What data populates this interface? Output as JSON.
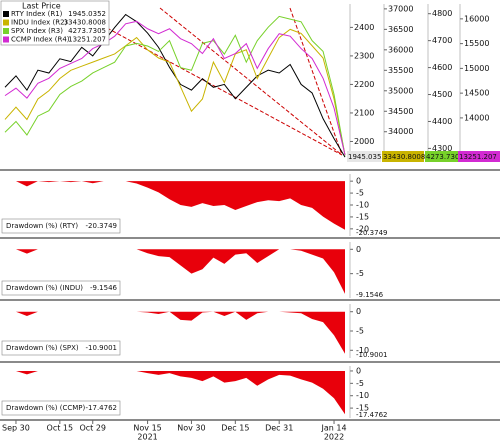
{
  "chart_data": [
    {
      "type": "line",
      "legend_title": "Last Price",
      "categories": [
        null,
        "Sep 30",
        null,
        null,
        null,
        "Oct 15",
        null,
        null,
        "Oct 29",
        null,
        null,
        null,
        null,
        "Nov 15",
        null,
        null,
        null,
        "Nov 30",
        null,
        null,
        null,
        "Dec 15",
        null,
        null,
        null,
        "Dec 31",
        null,
        null,
        null,
        null,
        "Jan 14",
        null
      ],
      "year_labels": [
        "2021",
        "2022"
      ],
      "series": [
        {
          "name": "RTY Index (R1)",
          "color": "#000000",
          "axis": "y",
          "values": [
            2190,
            2230,
            2180,
            2250,
            2240,
            2290,
            2280,
            2330,
            2300,
            2350,
            2400,
            2445,
            2420,
            2380,
            2330,
            2260,
            2200,
            2180,
            2220,
            2190,
            2200,
            2150,
            2190,
            2230,
            2250,
            2240,
            2270,
            2200,
            2170,
            2080,
            2010,
            1945.0352
          ]
        },
        {
          "name": "INDU Index (R2)",
          "color": "#c9b400",
          "axis": "y2",
          "values": [
            34300,
            34600,
            34300,
            34800,
            35000,
            35300,
            35500,
            35600,
            35700,
            35800,
            35900,
            36100,
            36300,
            36000,
            35800,
            35700,
            35100,
            34500,
            34800,
            35700,
            35200,
            35900,
            36000,
            35300,
            35800,
            36300,
            36500,
            36400,
            36100,
            35800,
            34800,
            33430.8008
          ]
        },
        {
          "name": "SPX Index (R3)",
          "color": "#77d12a",
          "axis": "y3",
          "values": [
            4360,
            4400,
            4350,
            4420,
            4440,
            4500,
            4530,
            4550,
            4580,
            4600,
            4620,
            4680,
            4690,
            4680,
            4660,
            4700,
            4600,
            4590,
            4690,
            4700,
            4650,
            4720,
            4620,
            4700,
            4750,
            4790,
            4780,
            4770,
            4700,
            4660,
            4500,
            4273.7305
          ]
        },
        {
          "name": "CCMP Index (R4)",
          "color": "#d22ad2",
          "axis": "y4",
          "values": [
            14450,
            14600,
            14400,
            14700,
            14800,
            15000,
            15100,
            15200,
            15400,
            15500,
            15650,
            15900,
            15950,
            15800,
            15700,
            15800,
            15600,
            15500,
            15300,
            15600,
            15200,
            15300,
            15500,
            15000,
            15400,
            15700,
            15650,
            15400,
            15200,
            14800,
            14200,
            13251.207
          ]
        }
      ],
      "ylim": [
        1935,
        2482
      ],
      "yticks": [
        2000,
        2100,
        2200,
        2300,
        2400
      ],
      "y2lim": [
        33310,
        37119
      ],
      "y2ticks": [
        34000,
        34500,
        35000,
        35500,
        36000,
        36500,
        37000
      ],
      "y3lim": [
        4257,
        4836
      ],
      "y3ticks": [
        4300,
        4400,
        4500,
        4600,
        4700,
        4800
      ],
      "y4lim": [
        13150,
        16300
      ],
      "y4ticks": [
        14000,
        14500,
        15000,
        15500,
        16000
      ]
    },
    {
      "type": "area",
      "label": "Drawdown (%) (RTY)",
      "color": "#e8000b",
      "ylim": [
        -23,
        3
      ],
      "yticks": [
        0,
        -5,
        -10,
        -15,
        -20
      ],
      "values": [
        0,
        0,
        -2.2,
        0,
        -0.4,
        0,
        -0.4,
        0,
        -0.9,
        0,
        0,
        0,
        -1,
        -2.7,
        -4.7,
        -7.6,
        -10,
        -10.8,
        -9.2,
        -10.4,
        -10,
        -12.1,
        -10.4,
        -8.8,
        -8,
        -8.4,
        -7.2,
        -10,
        -11.2,
        -14.9,
        -17.8,
        -20.3749
      ]
    },
    {
      "type": "area",
      "label": "Drawdown (%) (INDU)",
      "color": "#e8000b",
      "ylim": [
        -10,
        1.5
      ],
      "yticks": [
        0,
        -5
      ],
      "values": [
        0,
        0,
        -0.9,
        0,
        0,
        0,
        0,
        0,
        0,
        0,
        0,
        0,
        0,
        -0.8,
        -1.4,
        -1.6,
        -3.3,
        -5,
        -4.1,
        -1.7,
        -3,
        -1.1,
        -0.8,
        -2.8,
        -1.4,
        0,
        0,
        -0.3,
        -1.1,
        -1.9,
        -4.7,
        -9.1546
      ]
    },
    {
      "type": "area",
      "label": "Drawdown (%) (SPX)",
      "color": "#e8000b",
      "ylim": [
        -12,
        2
      ],
      "yticks": [
        0,
        -5,
        -10
      ],
      "values": [
        0,
        0,
        -1.1,
        0,
        0,
        0,
        0,
        0,
        0,
        0,
        0,
        0,
        0,
        -0.2,
        -0.6,
        0,
        -2.1,
        -2.3,
        -0.2,
        0,
        -1.1,
        0,
        -2.1,
        -0.4,
        0,
        0,
        -0.2,
        -0.4,
        -1.9,
        -2.7,
        -6.1,
        -10.9001
      ]
    },
    {
      "type": "area",
      "label": "Drawdown (%) (CCMP)",
      "color": "#e8000b",
      "ylim": [
        -19,
        2
      ],
      "yticks": [
        0,
        -5,
        -10,
        -15
      ],
      "values": [
        0,
        0,
        -1.4,
        0,
        0,
        0,
        0,
        0,
        0,
        0,
        0,
        0,
        0,
        -0.9,
        -1.6,
        -0.9,
        -2.2,
        -2.8,
        -4.1,
        -2.2,
        -4.7,
        -4.1,
        -2.8,
        -6,
        -3.4,
        -1.6,
        -1.9,
        -3.4,
        -4.7,
        -7.2,
        -11,
        -17.4762
      ]
    }
  ]
}
